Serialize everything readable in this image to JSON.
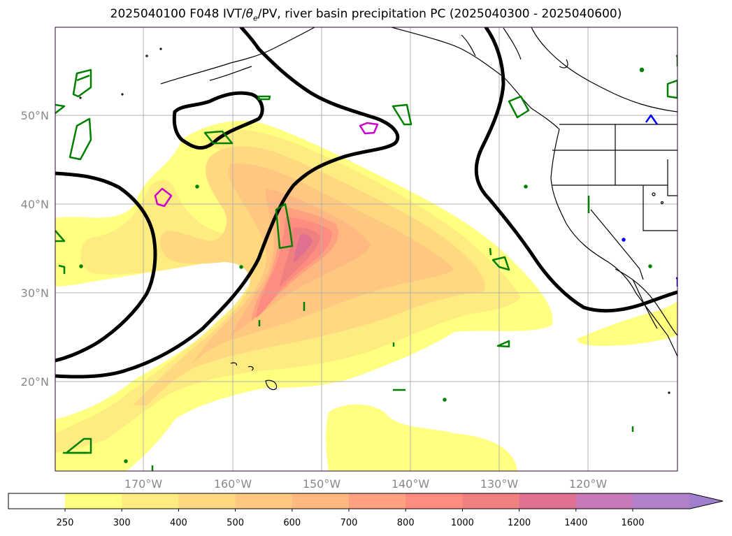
{
  "title": {
    "prefix": "2025040100 F048 IVT/",
    "theta": "θ",
    "theta_sub": "e",
    "suffix": "/PV, river basin precipitation PC (2025040300 - 2025040600)"
  },
  "map": {
    "lat_labels": [
      "50°N",
      "40°N",
      "30°N",
      "20°N"
    ],
    "lon_labels": [
      "170°W",
      "160°W",
      "150°W",
      "140°W",
      "130°W",
      "120°W"
    ],
    "lat_values": [
      50,
      40,
      30,
      20
    ],
    "lon_values": [
      -170,
      -160,
      -150,
      -140,
      -130,
      -120
    ],
    "extent": {
      "lon_min": -180,
      "lon_max": -110,
      "lat_min": 10,
      "lat_max": 60
    }
  },
  "colorbar": {
    "levels": [
      "250",
      "300",
      "400",
      "500",
      "600",
      "700",
      "800",
      "1000",
      "1200",
      "1400",
      "1600"
    ],
    "colors": [
      "#ffff80",
      "#ffec80",
      "#ffd880",
      "#ffc880",
      "#ffb880",
      "#ffa080",
      "#ff8c80",
      "#f08080",
      "#e07090",
      "#c878b8",
      "#b080c8",
      "#a080cc"
    ],
    "extend": "max"
  },
  "legend_colors": {
    "theta_e": "#000000",
    "pv_positive": "#008000",
    "pv_magenta": "#cc00cc",
    "pv_blue": "#0000ff"
  }
}
